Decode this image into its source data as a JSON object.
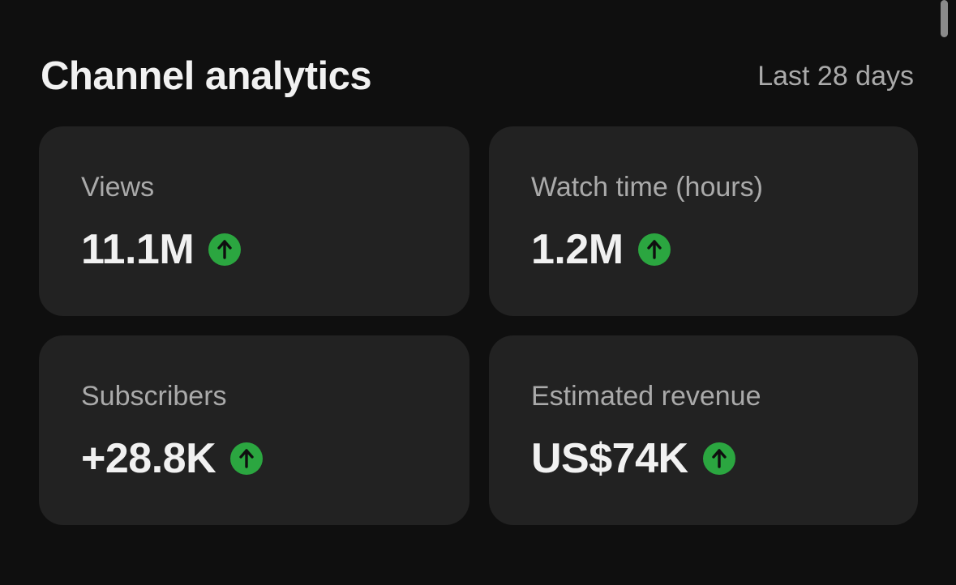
{
  "header": {
    "title": "Channel analytics",
    "period": "Last 28 days"
  },
  "colors": {
    "background": "#0f0f0f",
    "card": "#222222",
    "trend_up": "#2ba640",
    "primary_text": "#f1f1f1",
    "secondary_text": "#aaaaaa"
  },
  "metrics": [
    {
      "label": "Views",
      "value": "11.1M",
      "trend": "up",
      "icon": "arrow-up-circle-icon"
    },
    {
      "label": "Watch time (hours)",
      "value": "1.2M",
      "trend": "up",
      "icon": "arrow-up-circle-icon"
    },
    {
      "label": "Subscribers",
      "value": "+28.8K",
      "trend": "up",
      "icon": "arrow-up-circle-icon"
    },
    {
      "label": "Estimated revenue",
      "value": "US$74K",
      "trend": "up",
      "icon": "arrow-up-circle-icon"
    }
  ]
}
